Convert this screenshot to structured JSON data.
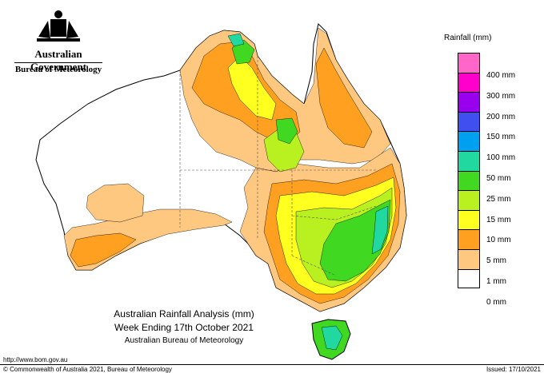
{
  "agency": {
    "government": "Australian Government",
    "bureau": "Bureau of Meteorology"
  },
  "legend": {
    "title": "Rainfall (mm)",
    "items": [
      {
        "label": "400 mm",
        "color": "#ff66c8"
      },
      {
        "label": "300 mm",
        "color": "#ff00cc"
      },
      {
        "label": "200 mm",
        "color": "#9900ee"
      },
      {
        "label": "150 mm",
        "color": "#4050f0"
      },
      {
        "label": "100 mm",
        "color": "#00a0f0"
      },
      {
        "label": "50 mm",
        "color": "#20d8a0"
      },
      {
        "label": "25 mm",
        "color": "#40d820"
      },
      {
        "label": "15 mm",
        "color": "#b8f020"
      },
      {
        "label": "10 mm",
        "color": "#ffff20"
      },
      {
        "label": "5 mm",
        "color": "#ffa020"
      },
      {
        "label": "1 mm",
        "color": "#ffc880"
      },
      {
        "label": "0 mm",
        "color": "#ffffff"
      }
    ]
  },
  "caption": {
    "line1": "Australian Rainfall Analysis (mm)",
    "line2": "Week Ending 17th October 2021",
    "line3": "Australian Bureau of Meteorology"
  },
  "footer": {
    "url": "http://www.bom.gov.au",
    "copyright": "© Commonwealth of Australia 2021, Bureau of Meteorology",
    "issued": "Issued: 17/10/2021"
  }
}
